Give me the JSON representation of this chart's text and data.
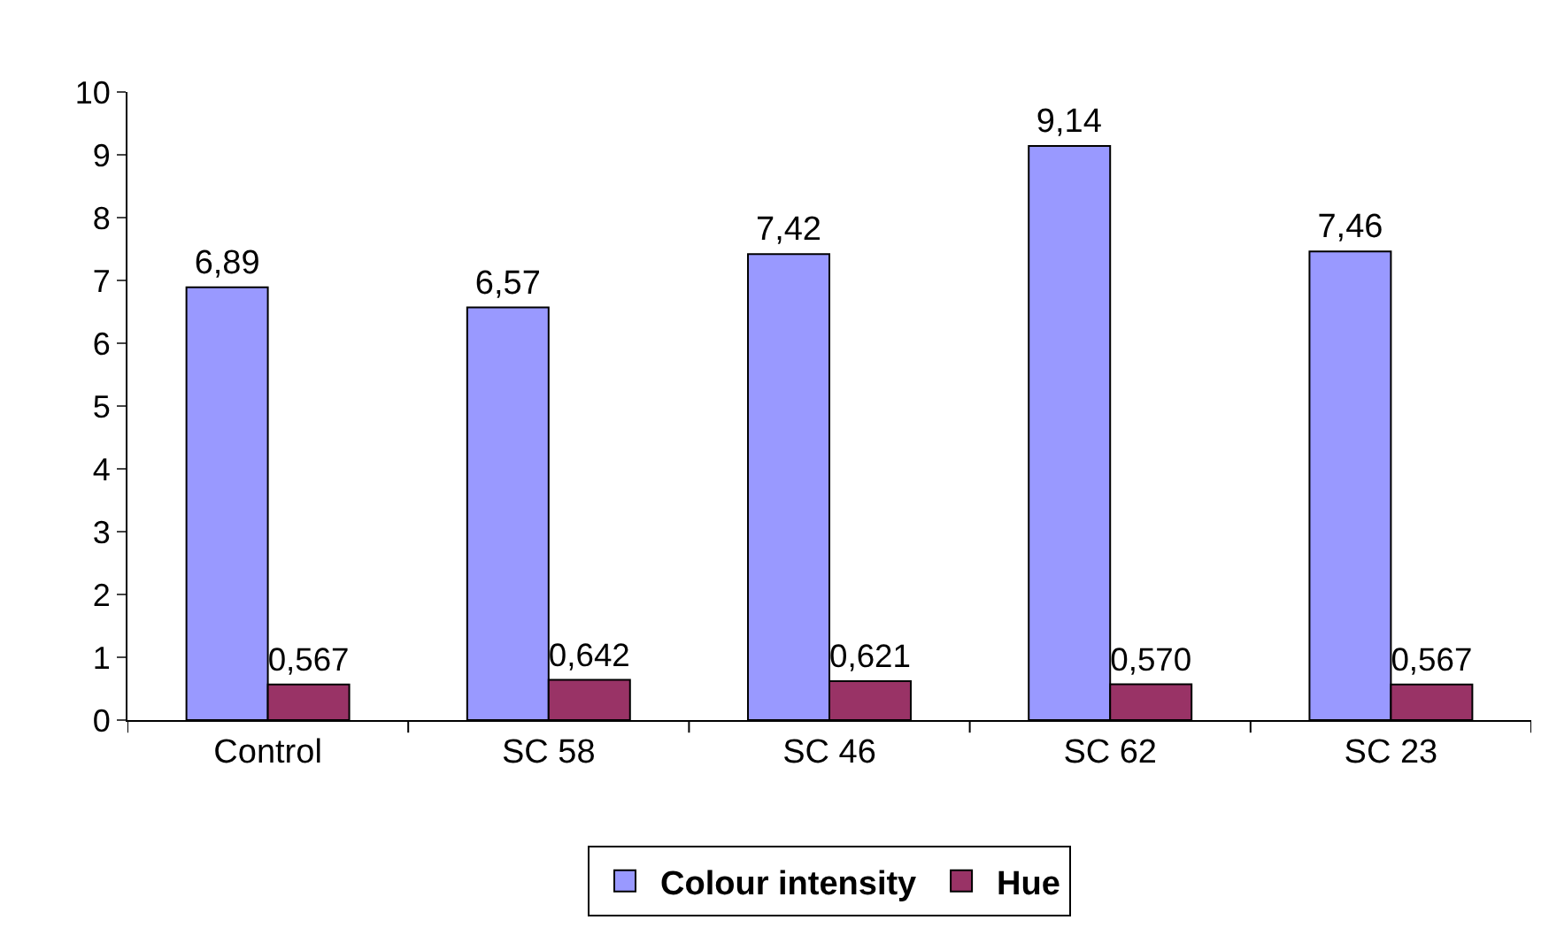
{
  "chart_data": {
    "type": "bar",
    "categories": [
      "Control",
      "SC 58",
      "SC 46",
      "SC 62",
      "SC 23"
    ],
    "series": [
      {
        "name": "Colour intensity",
        "color": "#9999ff",
        "values": [
          6.89,
          6.57,
          7.42,
          9.14,
          7.46
        ],
        "value_labels": [
          "6,89",
          "6,57",
          "7,42",
          "9,14",
          "7,46"
        ]
      },
      {
        "name": "Hue",
        "color": "#993366",
        "values": [
          0.567,
          0.642,
          0.621,
          0.57,
          0.567
        ],
        "value_labels": [
          "0,567",
          "0,642",
          "0,621",
          "0,570",
          "0,567"
        ]
      }
    ],
    "ylim": [
      0,
      10
    ],
    "yticks": [
      0,
      1,
      2,
      3,
      4,
      5,
      6,
      7,
      8,
      9,
      10
    ],
    "legend": "bottom"
  }
}
